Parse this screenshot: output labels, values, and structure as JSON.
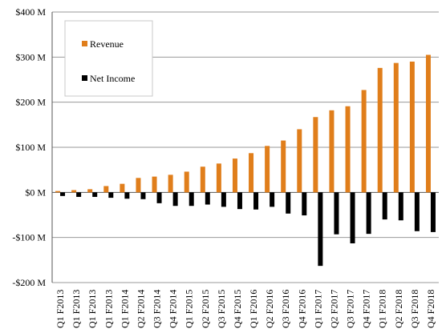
{
  "chart_data": {
    "type": "bar",
    "categories": [
      "Q1 F2013",
      "Q1 F2013",
      "Q1 F2013",
      "Q1 F2013",
      "Q1 F2014",
      "Q2 F2014",
      "Q3 F2014",
      "Q4 F2014",
      "Q1 F2015",
      "Q2 F2015",
      "Q3 F2015",
      "Q4 F2015",
      "Q1 F2016",
      "Q2 F2016",
      "Q3 F2016",
      "Q4 F2016",
      "Q1 F2017",
      "Q2 F2017",
      "Q3 F2017",
      "Q4 F2017",
      "Q1 F2018",
      "Q2 F2018",
      "Q3 F2018",
      "Q4 F2018"
    ],
    "series": [
      {
        "name": "Revenue",
        "color": "#E07E1B",
        "values": [
          3,
          5,
          7,
          14,
          19,
          32,
          35,
          39,
          46,
          57,
          64,
          75,
          87,
          103,
          115,
          140,
          167,
          182,
          191,
          227,
          276,
          287,
          290,
          305
        ]
      },
      {
        "name": "Net Income",
        "color": "#000000",
        "values": [
          -8,
          -10,
          -10,
          -12,
          -14,
          -15,
          -24,
          -30,
          -30,
          -27,
          -32,
          -37,
          -38,
          -32,
          -47,
          -51,
          -163,
          -93,
          -113,
          -92,
          -60,
          -62,
          -86,
          -88
        ]
      }
    ],
    "ylim": [
      -200,
      400
    ],
    "yticks": [
      -200,
      -100,
      0,
      100,
      200,
      300,
      400
    ],
    "ytick_labels": [
      "-$200 M",
      "-$100 M",
      "$0 M",
      "$100 M",
      "$200 M",
      "$300 M",
      "$400 M"
    ],
    "grid": true,
    "legend": "top-left"
  }
}
